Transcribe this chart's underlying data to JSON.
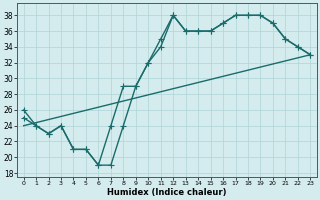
{
  "xlabel": "Humidex (Indice chaleur)",
  "xlim": [
    -0.5,
    23.5
  ],
  "ylim": [
    17.5,
    39.5
  ],
  "xticks": [
    0,
    1,
    2,
    3,
    4,
    5,
    6,
    7,
    8,
    9,
    10,
    11,
    12,
    13,
    14,
    15,
    16,
    17,
    18,
    19,
    20,
    21,
    22,
    23
  ],
  "yticks": [
    18,
    20,
    22,
    24,
    26,
    28,
    30,
    32,
    34,
    36,
    38
  ],
  "bg_color": "#d4ecee",
  "grid_color": "#afd4d8",
  "line_color": "#1a6b6b",
  "line1_x": [
    0,
    1,
    2,
    3,
    4,
    5,
    6,
    7,
    8,
    9,
    10,
    11,
    12,
    13,
    14,
    15,
    16,
    17,
    18,
    19,
    20,
    21,
    22,
    23
  ],
  "line1_y": [
    26,
    24,
    23,
    24,
    21,
    21,
    19,
    19,
    24,
    29,
    32,
    34,
    38,
    36,
    36,
    36,
    37,
    38,
    38,
    38,
    37,
    35,
    34,
    33
  ],
  "line2_x": [
    0,
    1,
    2,
    3,
    4,
    5,
    6,
    7,
    8,
    9,
    10,
    11,
    12,
    13,
    14,
    15,
    16,
    17,
    18,
    19,
    20,
    21,
    22,
    23
  ],
  "line2_y": [
    25,
    24,
    23,
    24,
    21,
    21,
    19,
    24,
    29,
    29,
    32,
    35,
    38,
    36,
    36,
    36,
    37,
    38,
    38,
    38,
    37,
    35,
    34,
    33
  ],
  "line3_x": [
    0,
    23
  ],
  "line3_y": [
    24,
    33
  ],
  "lw": 1.0,
  "ms": 2.2
}
